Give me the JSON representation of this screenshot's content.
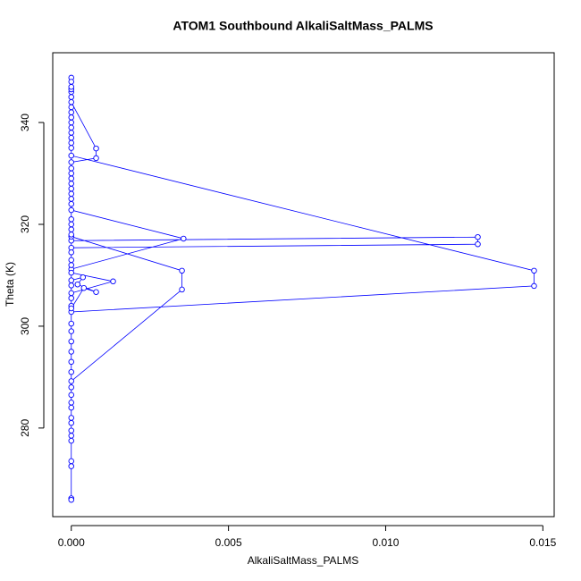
{
  "chart_data": {
    "type": "line",
    "title": "ATOM1 Southbound AlkaliSaltMass_PALMS",
    "xlabel": "AlkaliSaltMass_PALMS",
    "ylabel": "Theta (K)",
    "color": "#0000ff",
    "marker": "circle",
    "xlim": [
      -0.00059,
      0.01536
    ],
    "ylim": [
      262.6,
      353.7
    ],
    "xticks": [
      {
        "value": 0,
        "label": "0.000"
      },
      {
        "value": 0.005,
        "label": "0.005"
      },
      {
        "value": 0.01,
        "label": "0.010"
      },
      {
        "value": 0.015,
        "label": "0.015"
      }
    ],
    "yticks": [
      280,
      300,
      320,
      340
    ],
    "x": [
      0,
      0,
      0,
      0,
      0,
      0.00079,
      0.00079,
      0,
      0,
      0,
      0,
      0,
      0,
      0.01472,
      0.01472,
      0,
      0,
      0,
      0,
      0,
      0,
      0,
      0,
      0,
      0,
      0,
      0.00357,
      0,
      0,
      0,
      0.01293,
      0.01293,
      0,
      0,
      0,
      0,
      0.00352,
      0.00352,
      0,
      0,
      0,
      0,
      0,
      0,
      0,
      0,
      0,
      0,
      0,
      0,
      0,
      0,
      0,
      0,
      0,
      0,
      0.00133,
      0,
      0,
      0.00037,
      0.0002,
      0.00079,
      0.0004,
      0,
      0,
      0,
      0,
      0,
      0,
      0,
      0,
      0,
      0,
      0,
      0,
      0,
      0,
      0,
      0,
      0
    ],
    "values": [
      348.8,
      348.0,
      346.0,
      345.0,
      344.0,
      334.9,
      333.0,
      332.2,
      341,
      339,
      337,
      335,
      333.5,
      310.9,
      307.9,
      302.8,
      300.5,
      299,
      297,
      295,
      293,
      331,
      329,
      327,
      325,
      322.8,
      317.2,
      311.2,
      313,
      316.8,
      317.5,
      316.1,
      315.4,
      319,
      321,
      317.6,
      310.9,
      307.2,
      289.2,
      288,
      286.5,
      285,
      284,
      282,
      281,
      279.5,
      278.5,
      277.5,
      273.5,
      272.5,
      266.2,
      265.9,
      291,
      304,
      305.5,
      310.5,
      308.8,
      306.5,
      309,
      309.6,
      308.2,
      306.7,
      307.5,
      303.5,
      308,
      312,
      314.5,
      318,
      320,
      324,
      326,
      328,
      330,
      336,
      338,
      340,
      342,
      343,
      346.5,
      347
    ]
  }
}
